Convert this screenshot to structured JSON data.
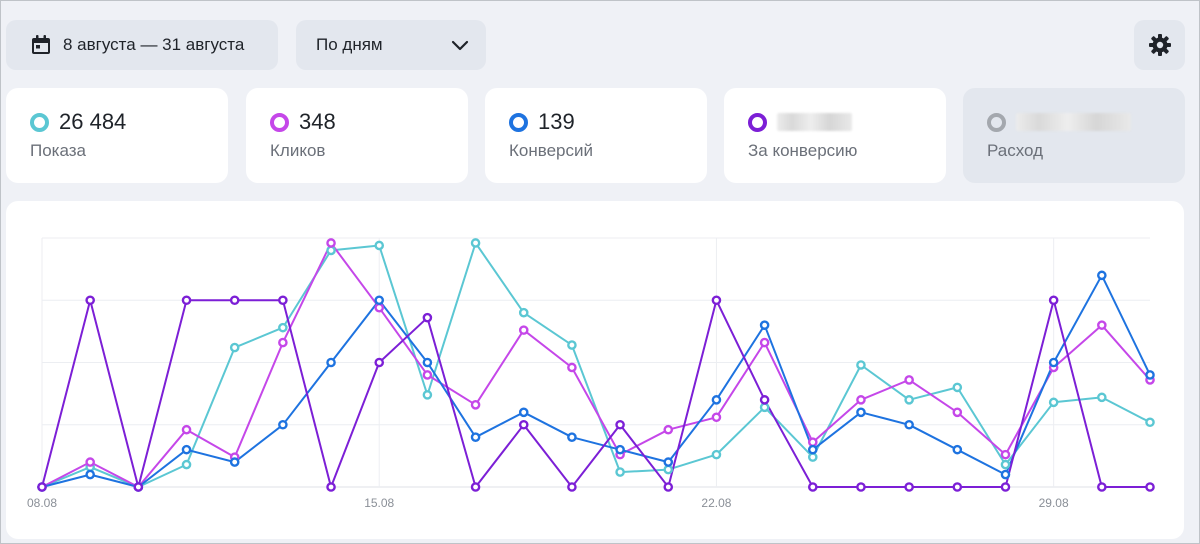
{
  "toolbar": {
    "date_range": "8 августа — 31 августа",
    "period": "По дням",
    "icons": {
      "calendar": "calendar-icon",
      "chevron": "chevron-down-icon",
      "settings": "gear-icon"
    }
  },
  "metrics": [
    {
      "value": "26 484",
      "label": "Показа",
      "color": "#5bc7d3",
      "blurred": false,
      "disabled": false
    },
    {
      "value": "348",
      "label": "Кликов",
      "color": "#c547e9",
      "blurred": false,
      "disabled": false
    },
    {
      "value": "139",
      "label": "Конверсий",
      "color": "#1e73e0",
      "blurred": false,
      "disabled": false
    },
    {
      "value": "",
      "label": "За конверсию",
      "color": "#7c1fd6",
      "blurred": true,
      "disabled": false
    },
    {
      "value": "",
      "label": "Расход",
      "color": "#a4a8ae",
      "blurred": true,
      "disabled": true
    }
  ],
  "chart_data": {
    "type": "line",
    "x": [
      "08.08",
      "09.08",
      "10.08",
      "11.08",
      "12.08",
      "13.08",
      "14.08",
      "15.08",
      "16.08",
      "17.08",
      "18.08",
      "19.08",
      "20.08",
      "21.08",
      "22.08",
      "23.08",
      "24.08",
      "25.08",
      "26.08",
      "27.08",
      "28.08",
      "29.08",
      "30.08",
      "31.08"
    ],
    "x_tick_labels": [
      "08.08",
      "15.08",
      "22.08",
      "29.08"
    ],
    "y_tick_labels": [],
    "ylim": [
      0,
      100
    ],
    "grid": true,
    "series": [
      {
        "color": "#5bc7d3",
        "values": [
          0,
          8,
          0,
          9,
          56,
          64,
          95,
          97,
          37,
          98,
          70,
          57,
          6,
          7,
          13,
          32,
          12,
          49,
          35,
          40,
          9,
          34,
          36,
          26
        ]
      },
      {
        "color": "#c547e9",
        "values": [
          0,
          10,
          0,
          23,
          12,
          58,
          98,
          72,
          45,
          33,
          63,
          48,
          13,
          23,
          28,
          58,
          18,
          35,
          43,
          30,
          13,
          48,
          65,
          43
        ]
      },
      {
        "color": "#1e73e0",
        "values": [
          0,
          5,
          0,
          15,
          10,
          25,
          50,
          75,
          50,
          20,
          30,
          20,
          15,
          10,
          35,
          65,
          15,
          30,
          25,
          15,
          5,
          50,
          85,
          45
        ]
      },
      {
        "color": "#7c1fd6",
        "values": [
          0,
          75,
          0,
          75,
          75,
          75,
          0,
          50,
          68,
          0,
          25,
          0,
          25,
          0,
          75,
          35,
          0,
          0,
          0,
          0,
          0,
          75,
          0,
          0
        ]
      }
    ]
  }
}
